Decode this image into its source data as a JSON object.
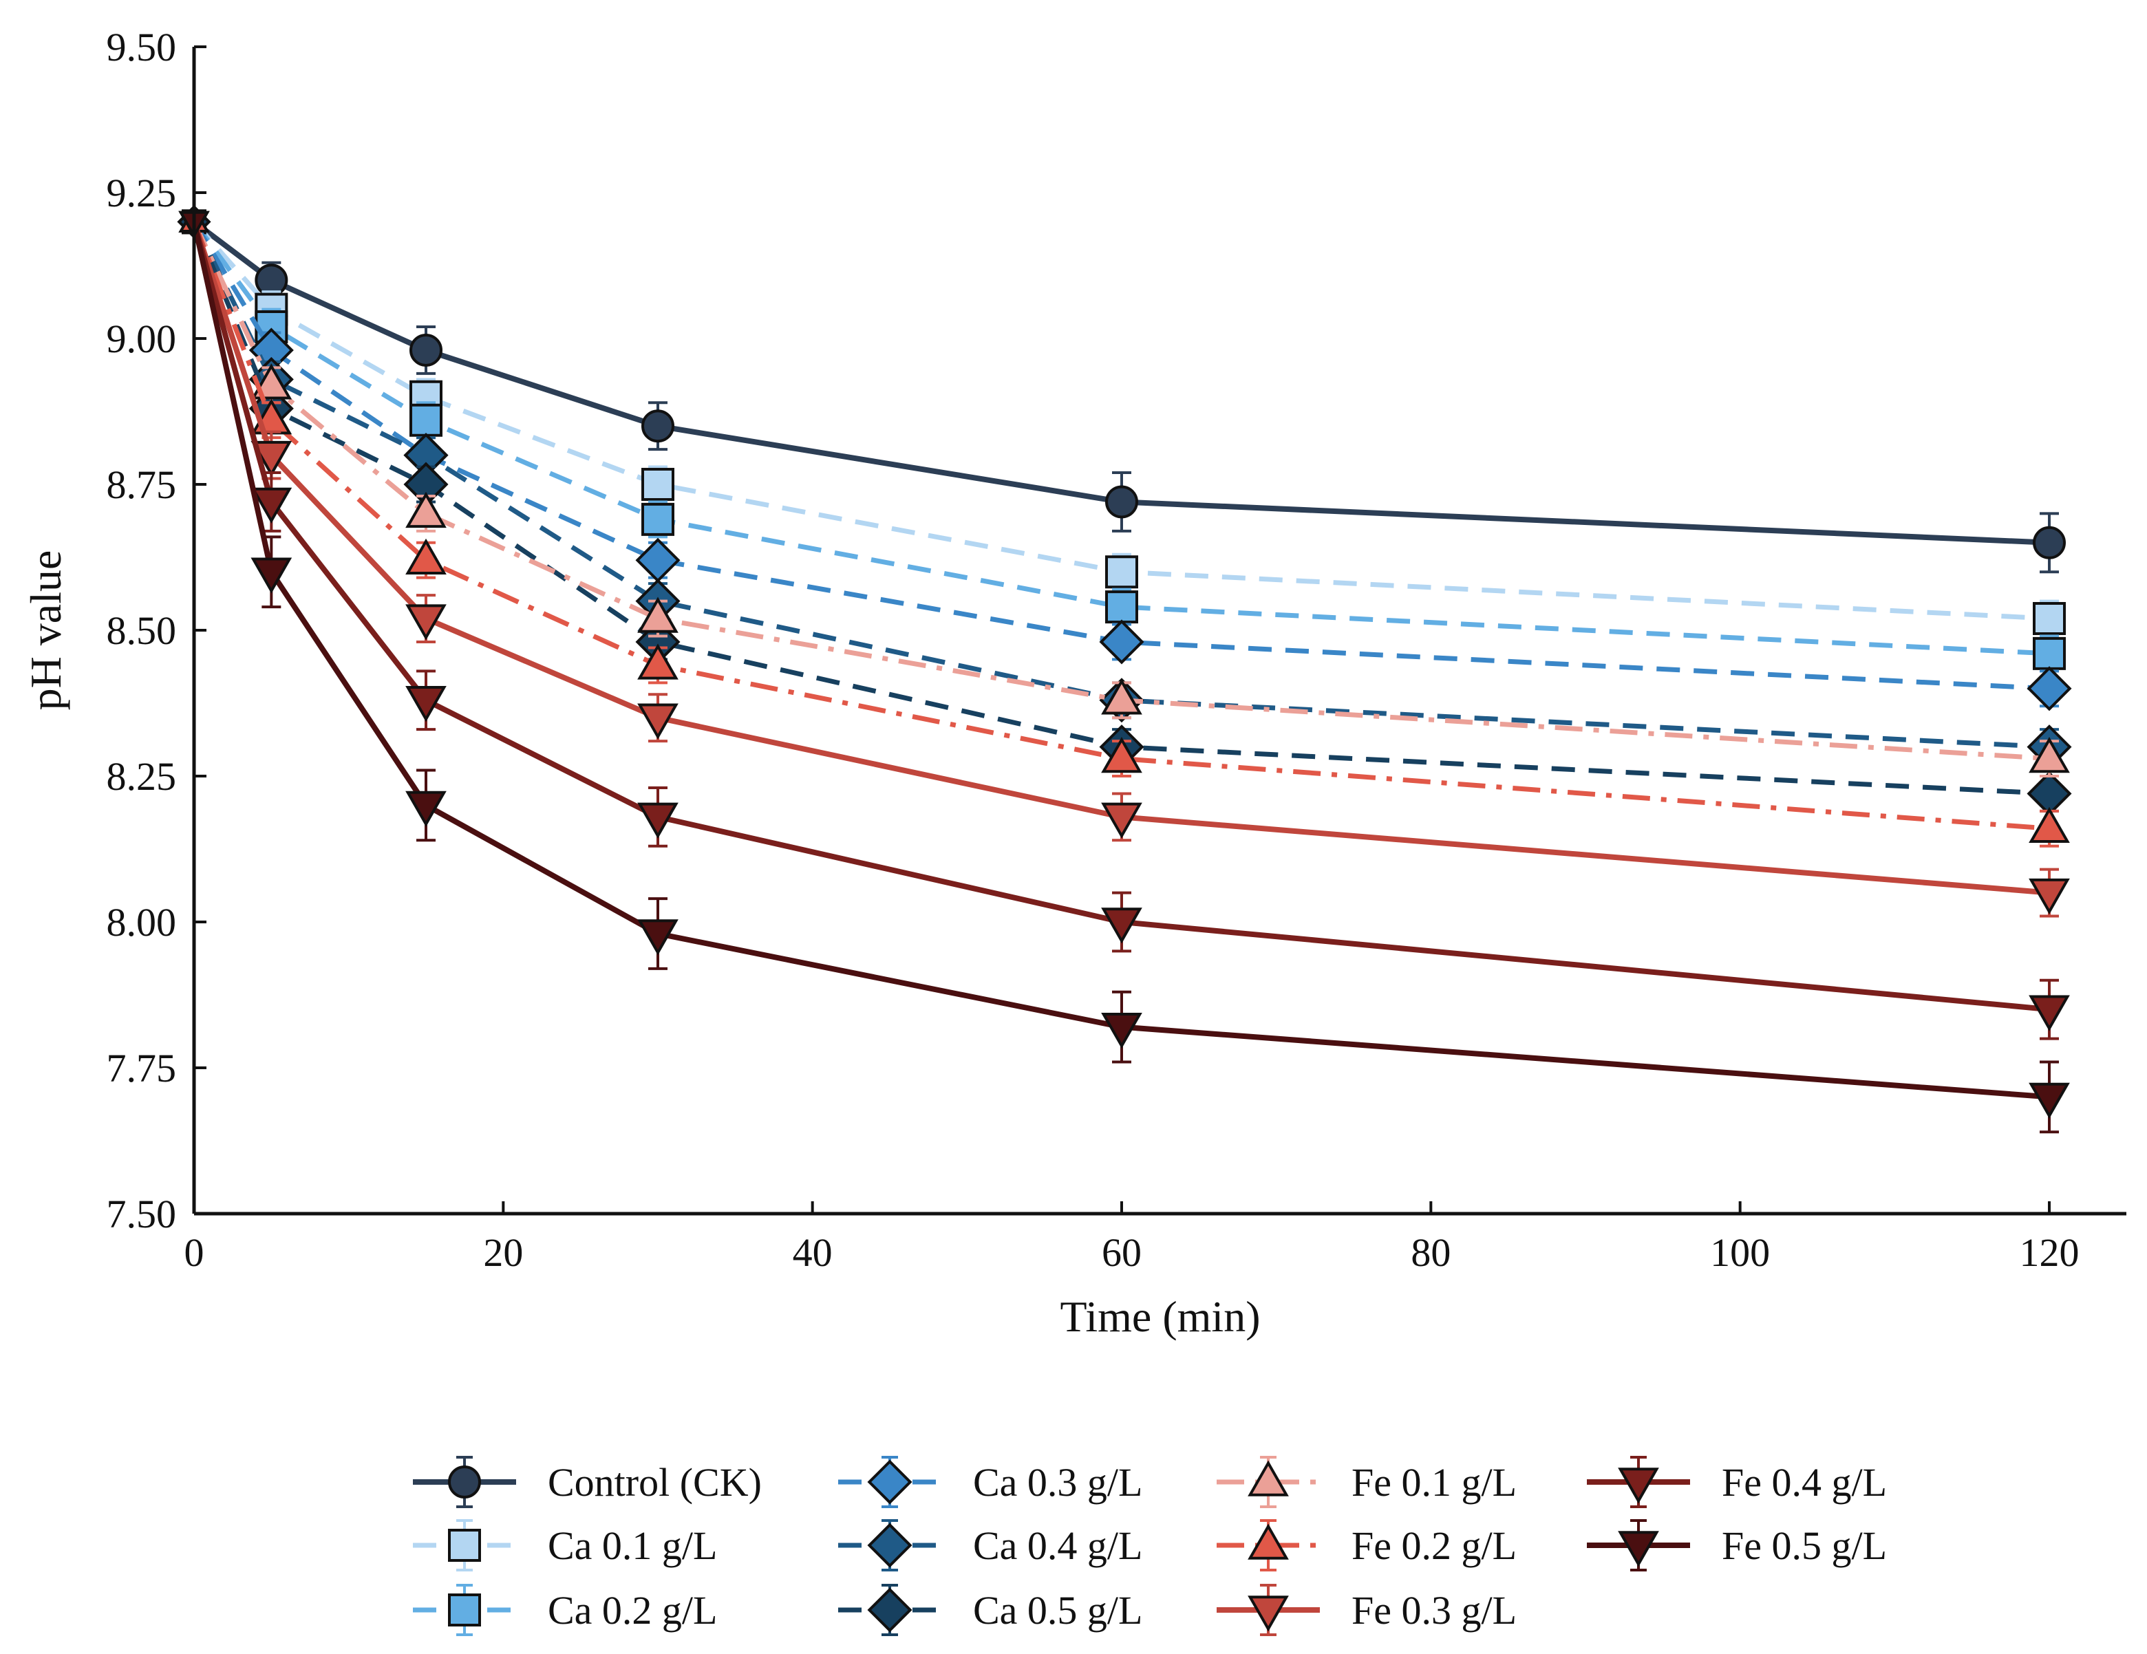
{
  "chart_data": {
    "type": "line",
    "title": "",
    "xlabel": "Time (min)",
    "ylabel": "pH value",
    "xlim": [
      0,
      125
    ],
    "ylim": [
      7.5,
      9.5
    ],
    "xticks": [
      0,
      20,
      40,
      60,
      80,
      100,
      120
    ],
    "yticks": [
      7.5,
      7.75,
      8.0,
      8.25,
      8.5,
      8.75,
      9.0,
      9.25,
      9.5
    ],
    "xtick_labels": [
      "0",
      "20",
      "40",
      "60",
      "80",
      "100",
      "120"
    ],
    "ytick_labels": [
      "7.50",
      "7.75",
      "8.00",
      "8.25",
      "8.50",
      "8.75",
      "9.00",
      "9.25",
      "9.50"
    ],
    "grid": false,
    "legend_position": "bottom",
    "x": [
      0,
      5,
      15,
      30,
      60,
      120
    ],
    "series": [
      {
        "name": "Control (CK)",
        "values": [
          9.2,
          9.1,
          8.98,
          8.85,
          8.72,
          8.65
        ],
        "errors": [
          0.03,
          0.03,
          0.04,
          0.04,
          0.05,
          0.05
        ],
        "color": "#2c3e55",
        "dash": "solid",
        "marker": "circle"
      },
      {
        "name": "Ca 0.1 g/L",
        "values": [
          9.2,
          9.05,
          8.9,
          8.75,
          8.6,
          8.52
        ],
        "errors": [
          0.03,
          0.03,
          0.03,
          0.03,
          0.03,
          0.03
        ],
        "color": "#b3d6f2",
        "dash": "dashed",
        "marker": "square"
      },
      {
        "name": "Ca 0.2 g/L",
        "values": [
          9.2,
          9.02,
          8.86,
          8.69,
          8.54,
          8.46
        ],
        "errors": [
          0.03,
          0.03,
          0.03,
          0.03,
          0.03,
          0.03
        ],
        "color": "#62aee3",
        "dash": "dashed",
        "marker": "square"
      },
      {
        "name": "Ca 0.3 g/L",
        "values": [
          9.2,
          8.98,
          8.8,
          8.62,
          8.48,
          8.4
        ],
        "errors": [
          0.03,
          0.03,
          0.03,
          0.03,
          0.03,
          0.03
        ],
        "color": "#3a86c7",
        "dash": "dashed",
        "marker": "diamond"
      },
      {
        "name": "Ca 0.4 g/L",
        "values": [
          9.2,
          8.93,
          8.8,
          8.55,
          8.38,
          8.3
        ],
        "errors": [
          0.03,
          0.03,
          0.03,
          0.03,
          0.03,
          0.03
        ],
        "color": "#1f5a87",
        "dash": "dashed",
        "marker": "diamond"
      },
      {
        "name": "Ca 0.5 g/L",
        "values": [
          9.2,
          8.88,
          8.75,
          8.48,
          8.3,
          8.22
        ],
        "errors": [
          0.03,
          0.03,
          0.03,
          0.03,
          0.03,
          0.03
        ],
        "color": "#17405f",
        "dash": "dashed",
        "marker": "diamond"
      },
      {
        "name": "Fe 0.1 g/L",
        "values": [
          9.2,
          8.92,
          8.7,
          8.52,
          8.38,
          8.28
        ],
        "errors": [
          0.03,
          0.03,
          0.03,
          0.03,
          0.03,
          0.03
        ],
        "color": "#eba097",
        "dash": "dashdot",
        "marker": "triangle-up"
      },
      {
        "name": "Fe 0.2 g/L",
        "values": [
          9.2,
          8.86,
          8.62,
          8.44,
          8.28,
          8.16
        ],
        "errors": [
          0.03,
          0.03,
          0.03,
          0.03,
          0.03,
          0.03
        ],
        "color": "#e15848",
        "dash": "dashdot",
        "marker": "triangle-up"
      },
      {
        "name": "Fe 0.3 g/L",
        "values": [
          9.2,
          8.8,
          8.52,
          8.35,
          8.18,
          8.05
        ],
        "errors": [
          0.04,
          0.04,
          0.04,
          0.04,
          0.04,
          0.04
        ],
        "color": "#c0463c",
        "dash": "solid",
        "marker": "triangle-down"
      },
      {
        "name": "Fe 0.4 g/L",
        "values": [
          9.2,
          8.72,
          8.38,
          8.18,
          8.0,
          7.85
        ],
        "errors": [
          0.05,
          0.05,
          0.05,
          0.05,
          0.05,
          0.05
        ],
        "color": "#7a1f1c",
        "dash": "solid",
        "marker": "triangle-down"
      },
      {
        "name": "Fe 0.5 g/L",
        "values": [
          9.2,
          8.6,
          8.2,
          7.98,
          7.82,
          7.7
        ],
        "errors": [
          0.06,
          0.06,
          0.06,
          0.06,
          0.06,
          0.06
        ],
        "color": "#4a0f10",
        "dash": "solid",
        "marker": "triangle-down"
      }
    ]
  }
}
